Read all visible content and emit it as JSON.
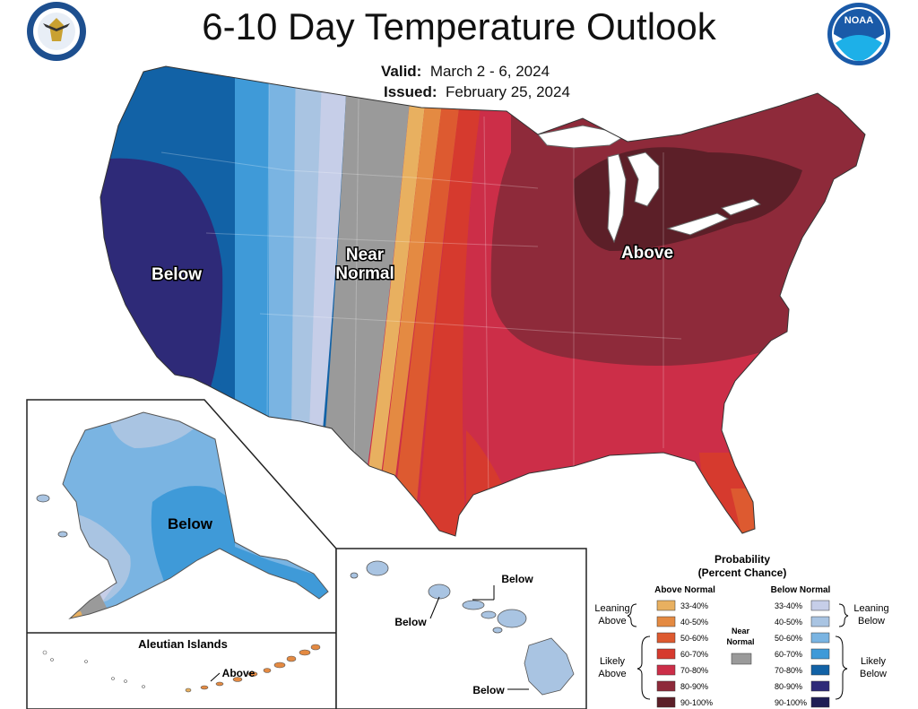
{
  "header": {
    "title": "6-10 Day Temperature Outlook",
    "valid_label": "Valid:",
    "valid_value": "March 2 - 6, 2024",
    "issued_label": "Issued:",
    "issued_value": "February 25, 2024"
  },
  "logos": {
    "left": "DEPARTMENT OF COMMERCE · UNITED STATES OF AMERICA",
    "right": "NOAA"
  },
  "map_labels": {
    "below": "Below",
    "near_normal_1": "Near",
    "near_normal_2": "Normal",
    "above": "Above",
    "alaska_below": "Below",
    "aleutian_title": "Aleutian Islands",
    "aleutian_above": "Above",
    "hawaii_below_1": "Below",
    "hawaii_below_2": "Below",
    "hawaii_below_3": "Below"
  },
  "legend": {
    "title_1": "Probability",
    "title_2": "(Percent Chance)",
    "above_header": "Above Normal",
    "below_header": "Below Normal",
    "near_label_1": "Near",
    "near_label_2": "Normal",
    "leaning_above_1": "Leaning",
    "leaning_above_2": "Above",
    "likely_above_1": "Likely",
    "likely_above_2": "Above",
    "leaning_below_1": "Leaning",
    "leaning_below_2": "Below",
    "likely_below_1": "Likely",
    "likely_below_2": "Below",
    "above_bins": [
      {
        "label": "33-40%",
        "color": "#e8b060"
      },
      {
        "label": "40-50%",
        "color": "#e48a42"
      },
      {
        "label": "50-60%",
        "color": "#dd5a30"
      },
      {
        "label": "60-70%",
        "color": "#d63a2e"
      },
      {
        "label": "70-80%",
        "color": "#cc2e48"
      },
      {
        "label": "80-90%",
        "color": "#8e2a3a"
      },
      {
        "label": "90-100%",
        "color": "#5c1f28"
      }
    ],
    "below_bins": [
      {
        "label": "33-40%",
        "color": "#c6cee8"
      },
      {
        "label": "40-50%",
        "color": "#a9c4e2"
      },
      {
        "label": "50-60%",
        "color": "#7ab4e2"
      },
      {
        "label": "60-70%",
        "color": "#3f9ad8"
      },
      {
        "label": "70-80%",
        "color": "#1262a6"
      },
      {
        "label": "80-90%",
        "color": "#2e2a78"
      },
      {
        "label": "90-100%",
        "color": "#1f1f55"
      }
    ],
    "near_color": "#9a9a9a"
  }
}
